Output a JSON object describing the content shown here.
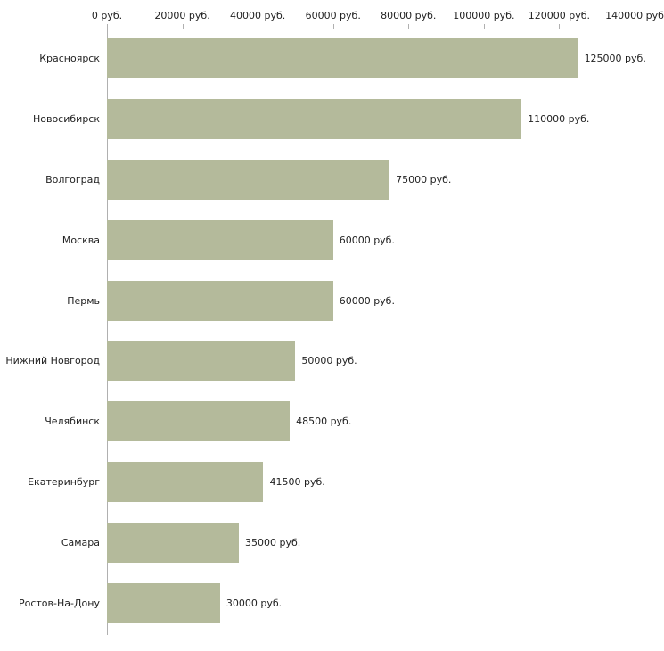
{
  "chart": {
    "bar_color": "#b4ba9b",
    "axis_color": "#b0b0b0",
    "background": "#ffffff"
  },
  "chart_data": {
    "type": "bar",
    "orientation": "horizontal",
    "title": "",
    "xlabel": "",
    "ylabel": "",
    "xlim": [
      0,
      140000
    ],
    "grid": false,
    "legend": false,
    "categories": [
      "Красноярск",
      "Новосибирск",
      "Волгоград",
      "Москва",
      "Пермь",
      "Нижний Новгород",
      "Челябинск",
      "Екатеринбург",
      "Самара",
      "Ростов-На-Дону"
    ],
    "values": [
      125000,
      110000,
      75000,
      60000,
      60000,
      50000,
      48500,
      41500,
      35000,
      30000
    ],
    "value_labels": [
      "125000 руб.",
      "110000 руб.",
      "75000 руб.",
      "60000 руб.",
      "60000 руб.",
      "50000 руб.",
      "48500 руб.",
      "41500 руб.",
      "35000 руб.",
      "30000 руб."
    ],
    "ticks": [
      {
        "value": 0,
        "label": "0 руб."
      },
      {
        "value": 20000,
        "label": "20000 руб."
      },
      {
        "value": 40000,
        "label": "40000 руб."
      },
      {
        "value": 60000,
        "label": "60000 руб."
      },
      {
        "value": 80000,
        "label": "80000 руб."
      },
      {
        "value": 100000,
        "label": "100000 руб."
      },
      {
        "value": 120000,
        "label": "120000 руб."
      },
      {
        "value": 140000,
        "label": "140000 руб"
      }
    ]
  }
}
